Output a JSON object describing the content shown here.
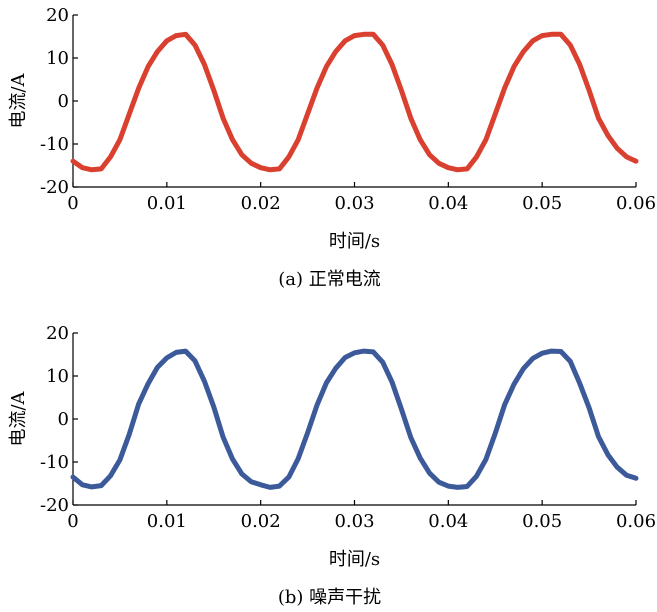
{
  "chart_data": [
    {
      "type": "line",
      "ylabel": "电流/A",
      "xlabel": "时间/s",
      "caption": "(a) 正常电流",
      "color": "#d9402f",
      "x": [
        0,
        0.001,
        0.002,
        0.003,
        0.004,
        0.005,
        0.006,
        0.007,
        0.008,
        0.009,
        0.01,
        0.011,
        0.012,
        0.013,
        0.014,
        0.015,
        0.016,
        0.017,
        0.018,
        0.019,
        0.02,
        0.021,
        0.022,
        0.023,
        0.024,
        0.025,
        0.026,
        0.027,
        0.028,
        0.029,
        0.03,
        0.031,
        0.032,
        0.033,
        0.034,
        0.035,
        0.036,
        0.037,
        0.038,
        0.039,
        0.04,
        0.041,
        0.042,
        0.043,
        0.044,
        0.045,
        0.046,
        0.047,
        0.048,
        0.049,
        0.05,
        0.051,
        0.052,
        0.053,
        0.054,
        0.055,
        0.056,
        0.057,
        0.058,
        0.059,
        0.06
      ],
      "values": [
        -14,
        -15.5,
        -16,
        -15.8,
        -13,
        -9,
        -3,
        3,
        8,
        11.5,
        14,
        15.2,
        15.5,
        13,
        8.5,
        2.5,
        -4,
        -9,
        -12.5,
        -14.5,
        -15.5,
        -16,
        -15.8,
        -13,
        -9,
        -3,
        3,
        8,
        11.5,
        14,
        15.2,
        15.5,
        15.5,
        13,
        8.5,
        2.5,
        -4,
        -9,
        -12.5,
        -14.5,
        -15.5,
        -16,
        -15.8,
        -13,
        -9,
        -3,
        3,
        8,
        11.5,
        14,
        15.2,
        15.5,
        15.5,
        13,
        8.5,
        2.5,
        -4,
        -8,
        -11,
        -13,
        -14
      ],
      "xlim": [
        0,
        0.06
      ],
      "ylim": [
        -20,
        20
      ],
      "xticks": [
        0,
        0.01,
        0.02,
        0.03,
        0.04,
        0.05,
        0.06
      ],
      "yticks": [
        20,
        10,
        0,
        -10,
        -20
      ]
    },
    {
      "type": "line",
      "ylabel": "电流/A",
      "xlabel": "时间/s",
      "caption": "(b) 噪声干扰",
      "color": "#3c5a9a",
      "x": [
        0,
        0.001,
        0.002,
        0.003,
        0.004,
        0.005,
        0.006,
        0.007,
        0.008,
        0.009,
        0.01,
        0.011,
        0.012,
        0.013,
        0.014,
        0.015,
        0.016,
        0.017,
        0.018,
        0.019,
        0.02,
        0.021,
        0.022,
        0.023,
        0.024,
        0.025,
        0.026,
        0.027,
        0.028,
        0.029,
        0.03,
        0.031,
        0.032,
        0.033,
        0.034,
        0.035,
        0.036,
        0.037,
        0.038,
        0.039,
        0.04,
        0.041,
        0.042,
        0.043,
        0.044,
        0.045,
        0.046,
        0.047,
        0.048,
        0.049,
        0.05,
        0.051,
        0.052,
        0.053,
        0.054,
        0.055,
        0.056,
        0.057,
        0.058,
        0.059,
        0.06
      ],
      "values": [
        -13.5,
        -15.3,
        -15.8,
        -15.5,
        -13.2,
        -9.5,
        -3.5,
        3.5,
        8.2,
        12,
        14.2,
        15.5,
        15.8,
        13.5,
        8.8,
        2.8,
        -4.2,
        -9.3,
        -12.8,
        -14.6,
        -15.3,
        -15.9,
        -15.6,
        -13.5,
        -9.2,
        -3.2,
        3.2,
        8.4,
        11.8,
        14.3,
        15.4,
        15.8,
        15.6,
        13.2,
        8.6,
        2.3,
        -4.3,
        -9.1,
        -12.6,
        -14.7,
        -15.6,
        -15.9,
        -15.7,
        -13.3,
        -9.4,
        -3.3,
        3.3,
        8.1,
        11.7,
        14.1,
        15.3,
        15.8,
        15.7,
        13.4,
        8.3,
        2.6,
        -4.1,
        -8.3,
        -11.2,
        -13.1,
        -13.8
      ],
      "xlim": [
        0,
        0.06
      ],
      "ylim": [
        -20,
        20
      ],
      "xticks": [
        0,
        0.01,
        0.02,
        0.03,
        0.04,
        0.05,
        0.06
      ],
      "yticks": [
        20,
        10,
        0,
        -10,
        -20
      ]
    }
  ]
}
